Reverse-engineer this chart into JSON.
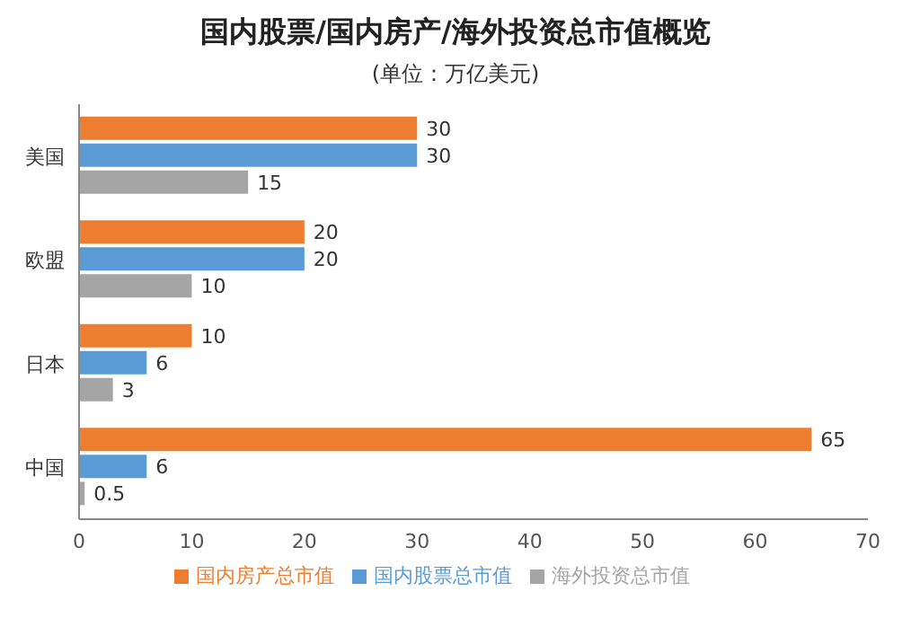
{
  "chart_data": {
    "type": "bar",
    "orientation": "horizontal",
    "title": "国内股票/国内房产/海外投资总市值概览",
    "subtitle": "(单位：万亿美元)",
    "categories": [
      "美国",
      "欧盟",
      "日本",
      "中国"
    ],
    "series": [
      {
        "name": "国内房产总市值",
        "color": "#ed7d31",
        "values": [
          30,
          20,
          10,
          65
        ]
      },
      {
        "name": "国内股票总市值",
        "color": "#5b9bd5",
        "values": [
          30,
          20,
          6,
          6
        ]
      },
      {
        "name": "海外投资总市值",
        "color": "#a5a5a5",
        "values": [
          15,
          10,
          3,
          0.5
        ]
      }
    ],
    "xlim": [
      0,
      70
    ],
    "xticks": [
      0,
      10,
      20,
      30,
      40,
      50,
      60,
      70
    ],
    "grid": false,
    "legend": "bottom",
    "data_labels": true
  }
}
